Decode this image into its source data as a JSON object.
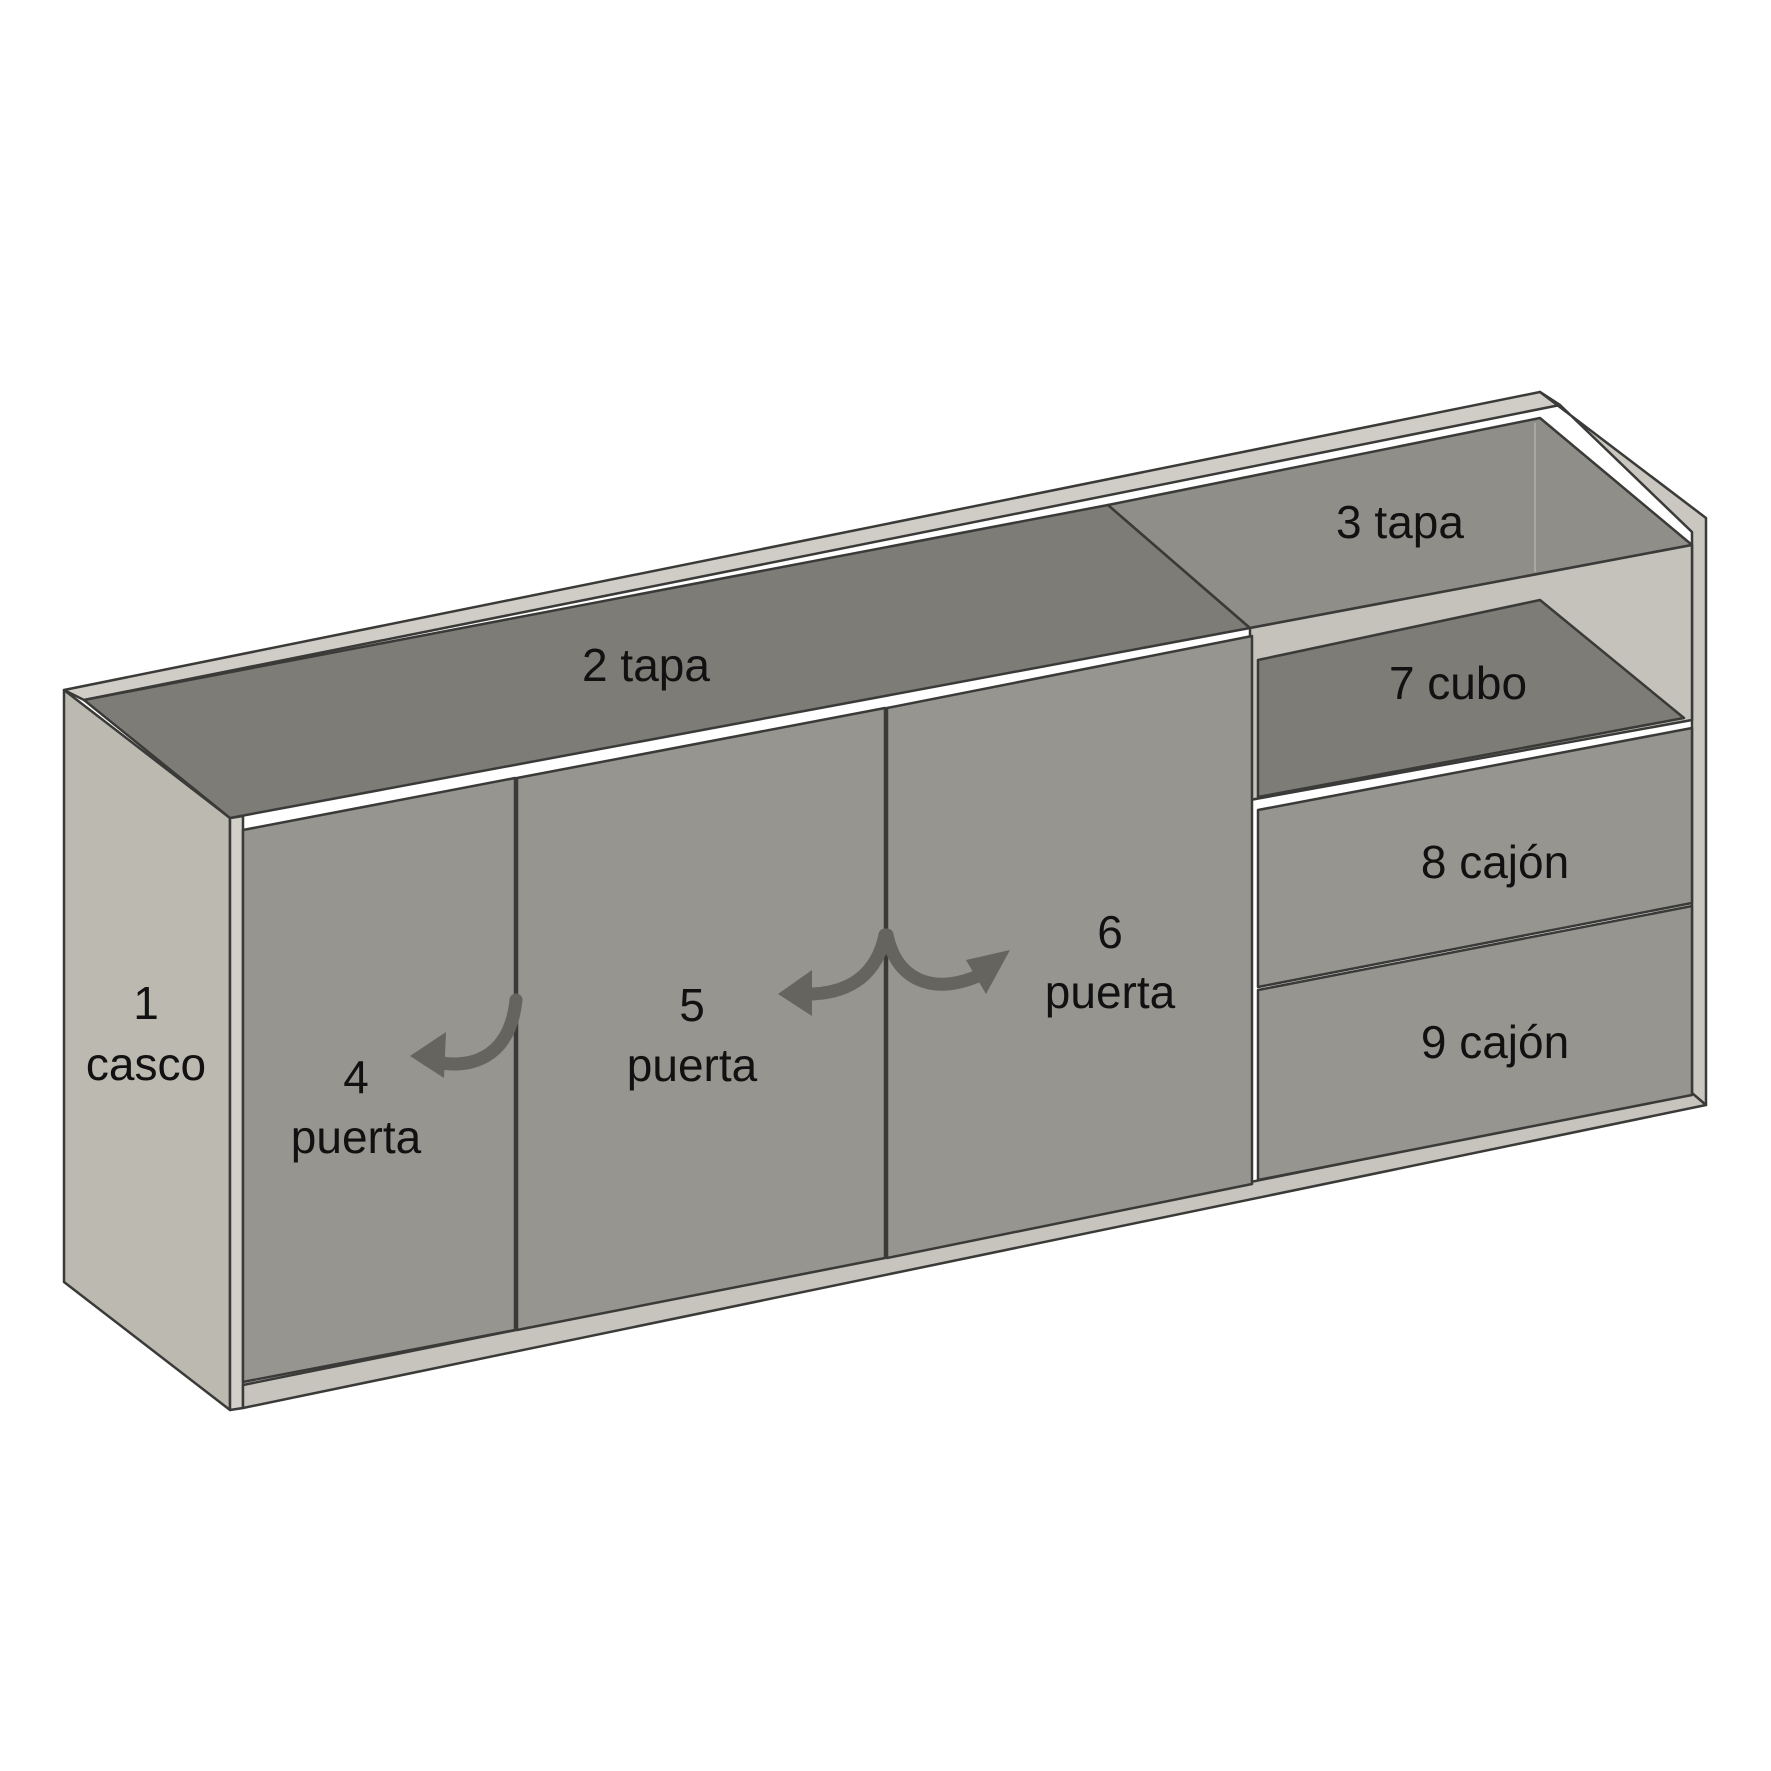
{
  "parts": [
    {
      "id": "casco",
      "number": "1",
      "name": "casco"
    },
    {
      "id": "tapa-2",
      "number": "2",
      "name": "tapa",
      "label": "2 tapa"
    },
    {
      "id": "tapa-3",
      "number": "3",
      "name": "tapa",
      "label": "3 tapa"
    },
    {
      "id": "puerta-4",
      "number": "4",
      "name": "puerta"
    },
    {
      "id": "puerta-5",
      "number": "5",
      "name": "puerta"
    },
    {
      "id": "puerta-6",
      "number": "6",
      "name": "puerta"
    },
    {
      "id": "cubo-7",
      "number": "7",
      "name": "cubo",
      "label": "7 cubo"
    },
    {
      "id": "cajon-8",
      "number": "8",
      "name": "cajón",
      "label": "8 cajón"
    },
    {
      "id": "cajon-9",
      "number": "9",
      "name": "cajón",
      "label": "9 cajón"
    }
  ],
  "colors": {
    "side": "#bbb9b0",
    "top": "#7e7c77",
    "door": "#979590",
    "glass": "#8f8e89",
    "interior": "#c4c2ba",
    "edge": "#3a3a38",
    "arrow": "#66645f"
  }
}
